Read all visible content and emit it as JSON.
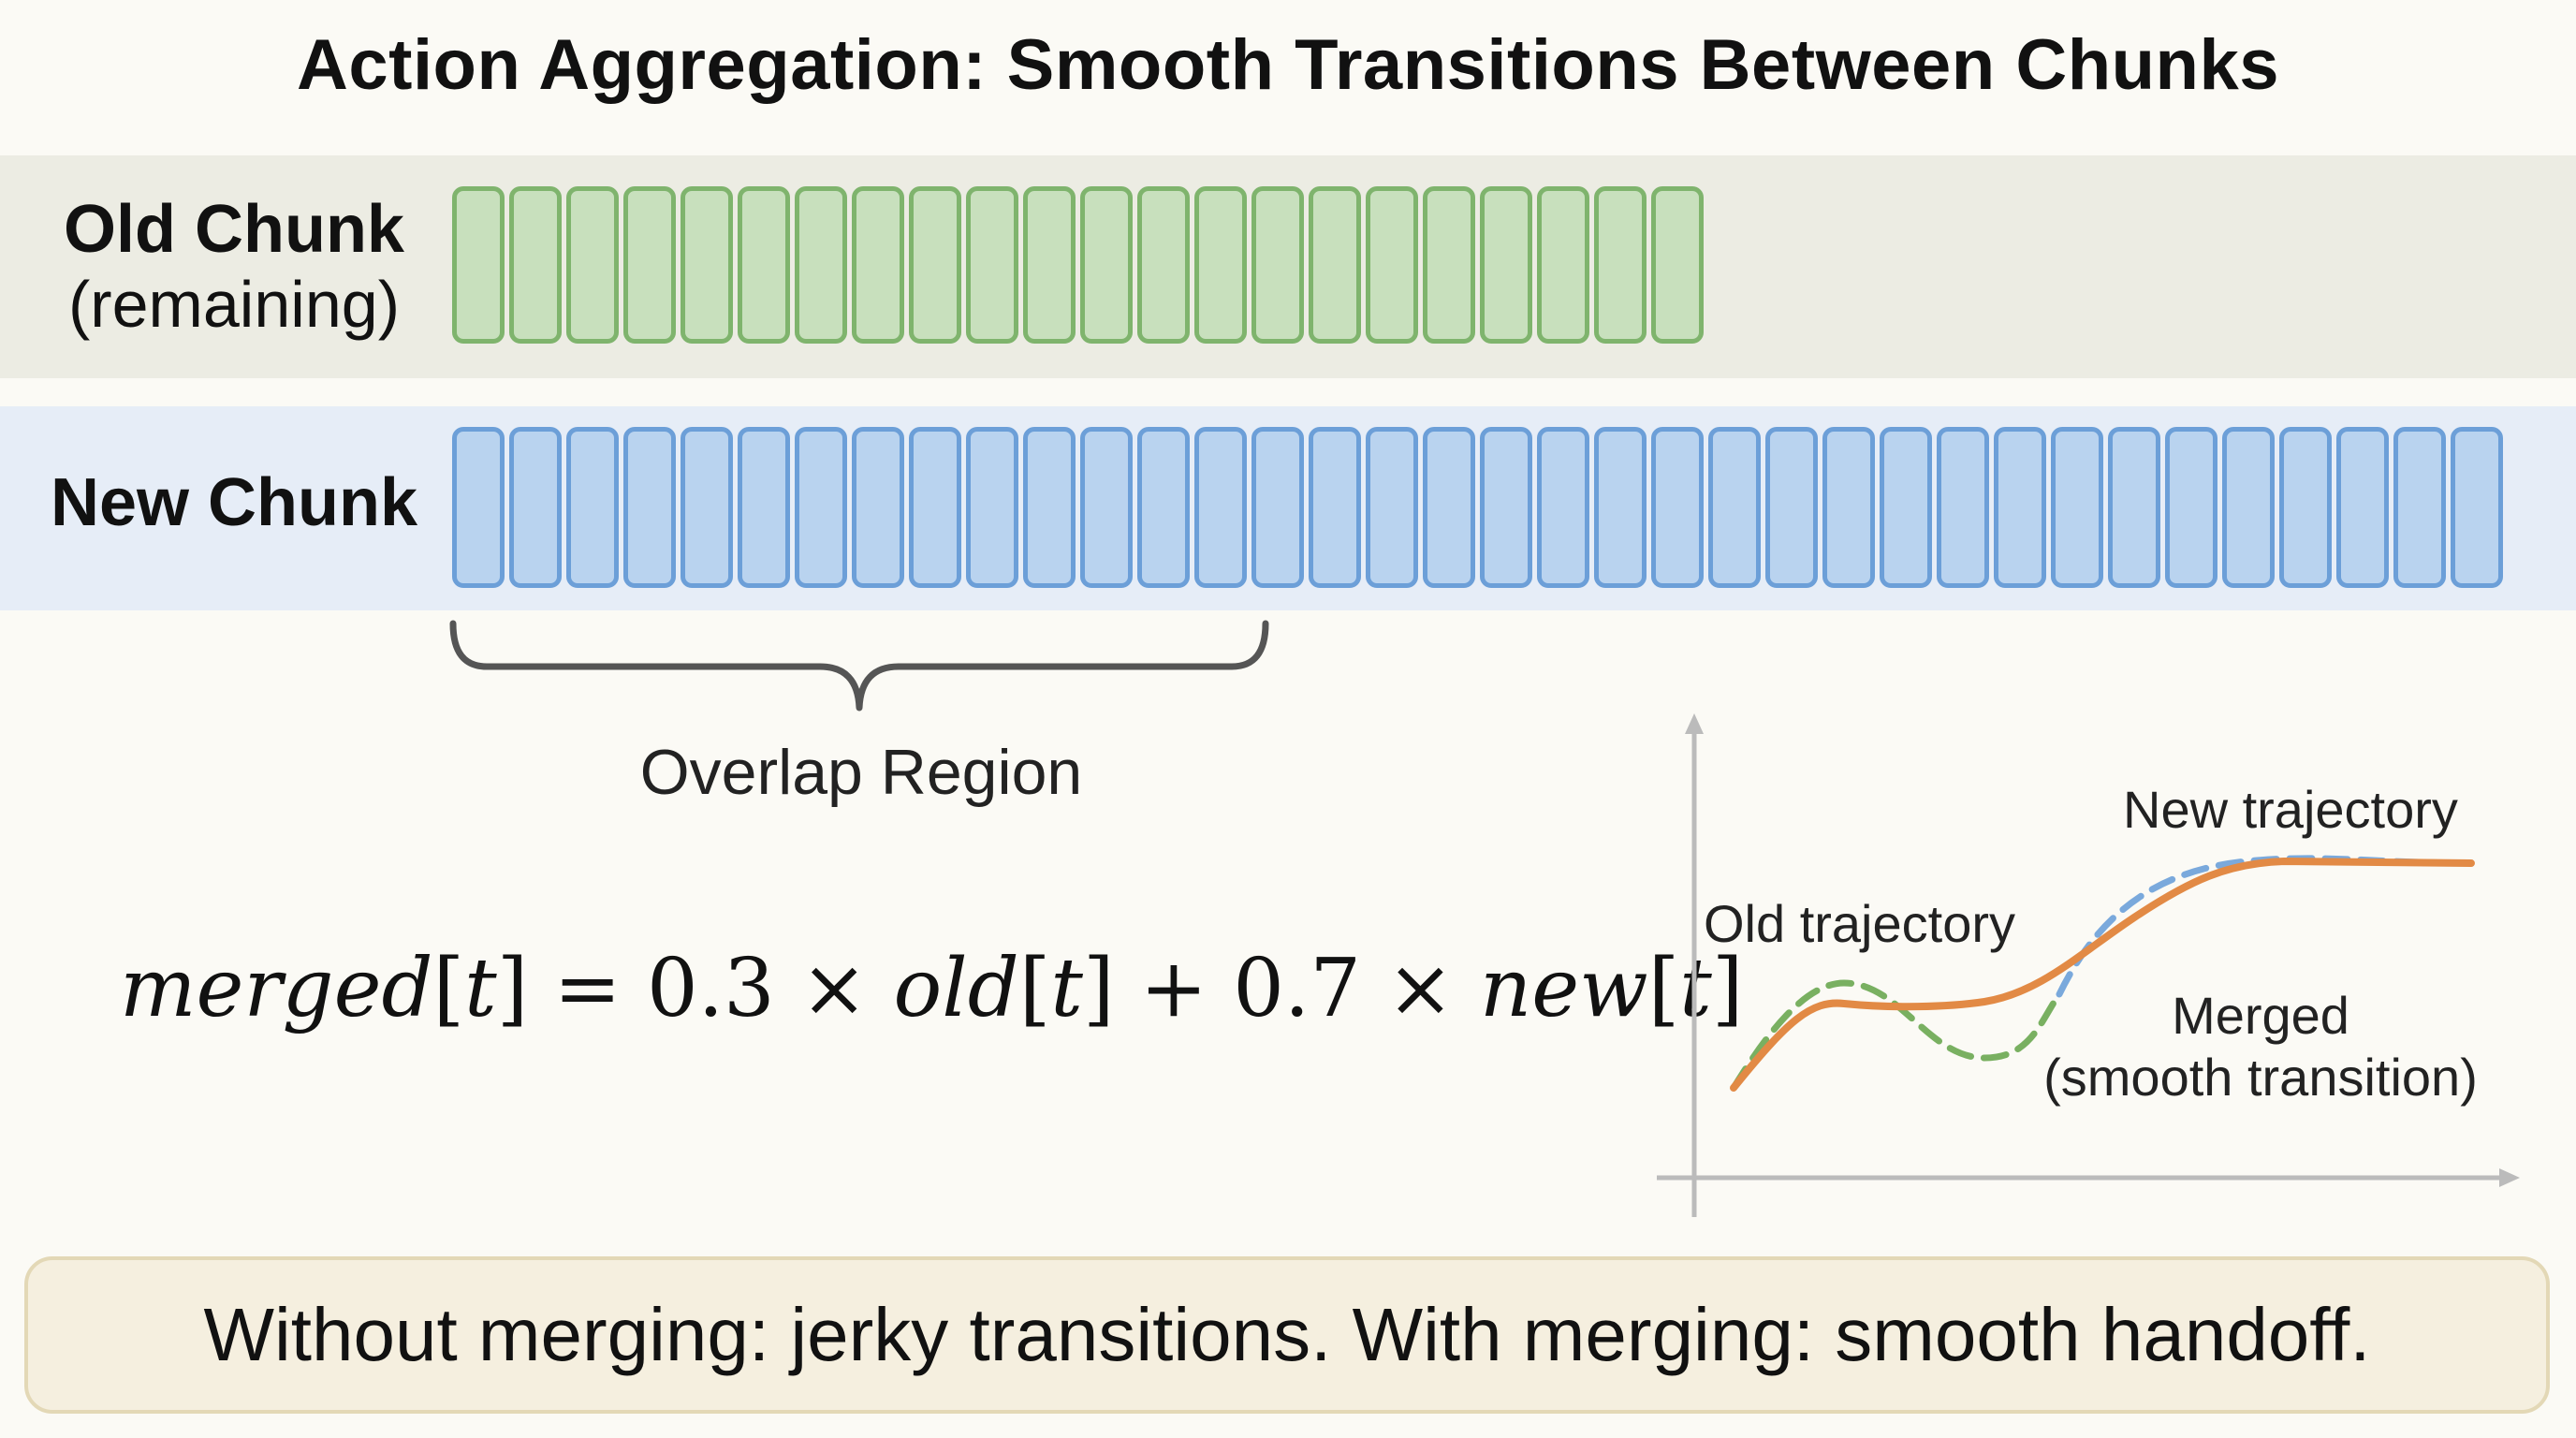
{
  "title": "Action Aggregation: Smooth Transitions Between Chunks",
  "old_chunk": {
    "label_line1": "Old Chunk",
    "label_line2": "(remaining)",
    "cell_count": 22,
    "fill_color": "#c8e0bd",
    "border_color": "#7fb46d"
  },
  "new_chunk": {
    "label": "New Chunk",
    "cell_count": 36,
    "fill_color": "#b9d3ef",
    "border_color": "#6c9fd8"
  },
  "overlap": {
    "label": "Overlap Region",
    "cell_count": 14
  },
  "formula": {
    "merged": "merged",
    "t": "t",
    "eq": "=",
    "w_old": "0.3",
    "times": "×",
    "old": "old",
    "plus": "+",
    "w_new": "0.7",
    "new": "new"
  },
  "plot": {
    "new_label": "New trajectory",
    "old_label": "Old trajectory",
    "merged_label_line1": "Merged",
    "merged_label_line2": "(smooth transition)",
    "new_color": "#7aa9dc",
    "old_color": "#79b061",
    "merged_color": "#e28a45"
  },
  "footer": "Without merging: jerky transitions. With merging: smooth handoff."
}
